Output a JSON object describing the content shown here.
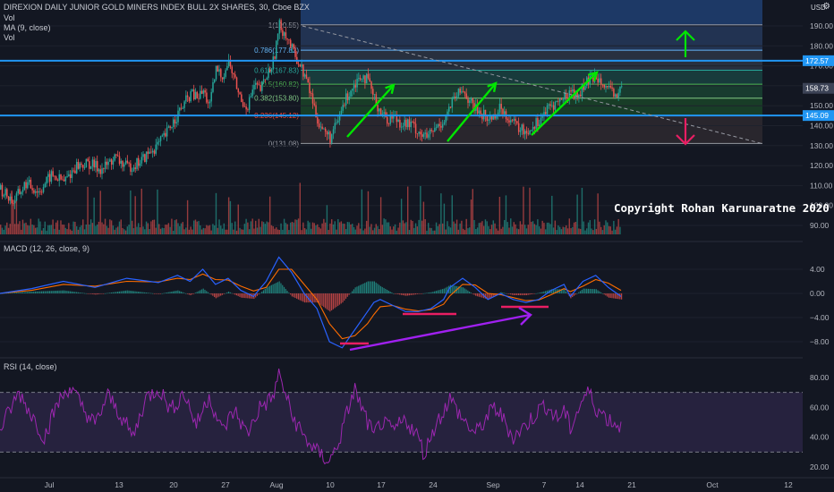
{
  "header": {
    "title": "DIREXION DAILY JUNIOR GOLD MINERS INDEX BULL 2X SHARES, 30, Cboe BZX",
    "indicators": [
      "Vol",
      "MA (9, close)",
      "Vol"
    ]
  },
  "currency": "USD",
  "copyright": "Copyright Rohan Karunaratne 2020",
  "macd_label": "MACD (12, 26, close, 9)",
  "rsi_label": "RSI (14, close)",
  "colors": {
    "up": "#26a69a",
    "down": "#ef5350",
    "blue_line": "#2196f3",
    "arrow_green": "#00e600",
    "arrow_red": "#e91e63",
    "macd_line": "#2962ff",
    "signal_line": "#ff6d00",
    "rsi_line": "#9c27b0",
    "purple_arrow": "#a020f0"
  },
  "chart_data": [
    {
      "type": "candlestick",
      "title": "DIREXION DAILY JUNIOR GOLD MINERS INDEX BULL 2X SHARES, 30, Cboe BZX",
      "x_labels": [
        "Jul",
        "13",
        "20",
        "27",
        "Aug",
        "10",
        "17",
        "24",
        "Sep",
        "7",
        "14",
        "21",
        "Oct",
        "12"
      ],
      "y_ticks": [
        90,
        100,
        110,
        120,
        130,
        140,
        150,
        160,
        170,
        180,
        190
      ],
      "ylim": [
        85,
        200
      ],
      "last_price": 158.73,
      "horizontal_levels": [
        172.57,
        145.09
      ],
      "fibonacci": [
        {
          "label": "1(190.55)",
          "value": 190.55
        },
        {
          "label": "0.786(177.82)",
          "value": 177.82
        },
        {
          "label": "0.618(167.83)",
          "value": 167.83
        },
        {
          "label": "0.5(160.82)",
          "value": 160.82
        },
        {
          "label": "0.382(153.80)",
          "value": 153.8
        },
        {
          "label": "0.236(145.12)",
          "value": 145.12
        },
        {
          "label": "0(131.08)",
          "value": 131.08
        }
      ],
      "price_path": [
        [
          0,
          108
        ],
        [
          4,
          102
        ],
        [
          8,
          111
        ],
        [
          12,
          107
        ],
        [
          16,
          115
        ],
        [
          20,
          112
        ],
        [
          24,
          120
        ],
        [
          28,
          121
        ],
        [
          32,
          118
        ],
        [
          36,
          124
        ],
        [
          40,
          119
        ],
        [
          44,
          122
        ],
        [
          48,
          128
        ],
        [
          50,
          131
        ],
        [
          52,
          135
        ],
        [
          54,
          141
        ],
        [
          56,
          146
        ],
        [
          58,
          151
        ],
        [
          60,
          156
        ],
        [
          62,
          154
        ],
        [
          64,
          157
        ],
        [
          66,
          150
        ],
        [
          68,
          168
        ],
        [
          70,
          165
        ],
        [
          72,
          172
        ],
        [
          74,
          162
        ],
        [
          76,
          152
        ],
        [
          78,
          150
        ],
        [
          80,
          160
        ],
        [
          82,
          158
        ],
        [
          84,
          165
        ],
        [
          86,
          172
        ],
        [
          88,
          190
        ],
        [
          90,
          186
        ],
        [
          92,
          178
        ],
        [
          94,
          172
        ],
        [
          96,
          165
        ],
        [
          98,
          155
        ],
        [
          100,
          143
        ],
        [
          102,
          137
        ],
        [
          104,
          134
        ],
        [
          106,
          140
        ],
        [
          108,
          150
        ],
        [
          110,
          157
        ],
        [
          112,
          162
        ],
        [
          114,
          166
        ],
        [
          116,
          162
        ],
        [
          118,
          153
        ],
        [
          120,
          147
        ],
        [
          122,
          143
        ],
        [
          124,
          145
        ],
        [
          126,
          142
        ],
        [
          128,
          141
        ],
        [
          130,
          140
        ],
        [
          132,
          137
        ],
        [
          134,
          134
        ],
        [
          136,
          136
        ],
        [
          138,
          140
        ],
        [
          140,
          143
        ],
        [
          142,
          150
        ],
        [
          144,
          155
        ],
        [
          146,
          158
        ],
        [
          148,
          152
        ],
        [
          150,
          148
        ],
        [
          152,
          146
        ],
        [
          154,
          143
        ],
        [
          156,
          146
        ],
        [
          158,
          149
        ],
        [
          160,
          145
        ],
        [
          162,
          141
        ],
        [
          164,
          138
        ],
        [
          166,
          137
        ],
        [
          168,
          140
        ],
        [
          170,
          143
        ],
        [
          172,
          147
        ],
        [
          174,
          150
        ],
        [
          176,
          152
        ],
        [
          178,
          154
        ],
        [
          180,
          158
        ],
        [
          182,
          154
        ],
        [
          184,
          160
        ],
        [
          186,
          163
        ],
        [
          188,
          165
        ],
        [
          190,
          163
        ],
        [
          192,
          157
        ],
        [
          194,
          155
        ],
        [
          196,
          158.73
        ]
      ],
      "price_path_x_unit": "bar index (0 = Jul start, 196 = last bar)"
    },
    {
      "type": "line",
      "title": "MACD (12, 26, close, 9)",
      "y_ticks": [
        4.0,
        0.0,
        -4.0,
        -8.0
      ],
      "y_tick_labels": [
        "4.00",
        "0.00",
        "−4.00",
        "−8.00"
      ],
      "ylim": [
        -10.5,
        7
      ],
      "series": [
        {
          "role": "macd",
          "values": [
            [
              0,
              0
            ],
            [
              10,
              0.8
            ],
            [
              20,
              2
            ],
            [
              30,
              1
            ],
            [
              40,
              2.5
            ],
            [
              50,
              1.8
            ],
            [
              56,
              3
            ],
            [
              60,
              2
            ],
            [
              64,
              4
            ],
            [
              68,
              1.5
            ],
            [
              72,
              2.5
            ],
            [
              76,
              0.5
            ],
            [
              80,
              -0.5
            ],
            [
              84,
              2
            ],
            [
              88,
              6
            ],
            [
              92,
              3.5
            ],
            [
              96,
              0
            ],
            [
              100,
              -2.5
            ],
            [
              104,
              -8
            ],
            [
              108,
              -9
            ],
            [
              112,
              -6
            ],
            [
              116,
              -3
            ],
            [
              118,
              -1.5
            ],
            [
              120,
              -1
            ],
            [
              124,
              -2
            ],
            [
              128,
              -3
            ],
            [
              132,
              -3
            ],
            [
              136,
              -2.5
            ],
            [
              140,
              -1
            ],
            [
              142,
              1
            ],
            [
              146,
              2.5
            ],
            [
              150,
              1
            ],
            [
              154,
              -1
            ],
            [
              158,
              0
            ],
            [
              162,
              -1
            ],
            [
              166,
              -1.5
            ],
            [
              170,
              -1
            ],
            [
              174,
              0.5
            ],
            [
              178,
              1.5
            ],
            [
              180,
              -0.5
            ],
            [
              184,
              2
            ],
            [
              188,
              3
            ],
            [
              192,
              1
            ],
            [
              196,
              -0.5
            ]
          ]
        },
        {
          "role": "signal",
          "values": [
            [
              0,
              0
            ],
            [
              10,
              0.5
            ],
            [
              20,
              1.5
            ],
            [
              30,
              1.2
            ],
            [
              40,
              2
            ],
            [
              50,
              1.9
            ],
            [
              56,
              2.5
            ],
            [
              60,
              2.3
            ],
            [
              64,
              3.2
            ],
            [
              68,
              2.3
            ],
            [
              72,
              2.2
            ],
            [
              76,
              1.2
            ],
            [
              80,
              0.4
            ],
            [
              84,
              1
            ],
            [
              88,
              4
            ],
            [
              92,
              4
            ],
            [
              96,
              1.5
            ],
            [
              100,
              -1
            ],
            [
              104,
              -5
            ],
            [
              108,
              -7.5
            ],
            [
              112,
              -7
            ],
            [
              116,
              -5
            ],
            [
              118,
              -3.5
            ],
            [
              120,
              -2.2
            ],
            [
              124,
              -2
            ],
            [
              128,
              -2.6
            ],
            [
              132,
              -2.9
            ],
            [
              136,
              -2.7
            ],
            [
              140,
              -1.8
            ],
            [
              142,
              -0.4
            ],
            [
              146,
              1.5
            ],
            [
              150,
              1.4
            ],
            [
              154,
              0
            ],
            [
              158,
              -0.2
            ],
            [
              162,
              -0.7
            ],
            [
              166,
              -1.2
            ],
            [
              170,
              -1.1
            ],
            [
              174,
              -0.2
            ],
            [
              178,
              0.8
            ],
            [
              180,
              0.3
            ],
            [
              184,
              1.2
            ],
            [
              188,
              2.3
            ],
            [
              192,
              1.7
            ],
            [
              196,
              0.5
            ]
          ]
        }
      ]
    },
    {
      "type": "line",
      "title": "RSI (14, close)",
      "y_ticks": [
        20.0,
        40.0,
        60.0,
        80.0
      ],
      "y_tick_labels": [
        "20.00",
        "40.00",
        "60.00",
        "80.00"
      ],
      "ylim": [
        15,
        90
      ],
      "band": [
        30,
        70
      ],
      "series": [
        {
          "role": "rsi",
          "values": [
            [
              0,
              45
            ],
            [
              6,
              70
            ],
            [
              10,
              55
            ],
            [
              14,
              40
            ],
            [
              18,
              62
            ],
            [
              22,
              74
            ],
            [
              26,
              60
            ],
            [
              30,
              48
            ],
            [
              34,
              68
            ],
            [
              38,
              55
            ],
            [
              42,
              40
            ],
            [
              46,
              66
            ],
            [
              50,
              73
            ],
            [
              54,
              58
            ],
            [
              58,
              70
            ],
            [
              62,
              48
            ],
            [
              66,
              68
            ],
            [
              70,
              44
            ],
            [
              74,
              58
            ],
            [
              78,
              42
            ],
            [
              82,
              60
            ],
            [
              86,
              66
            ],
            [
              88,
              82
            ],
            [
              90,
              70
            ],
            [
              92,
              55
            ],
            [
              96,
              40
            ],
            [
              100,
              30
            ],
            [
              104,
              24
            ],
            [
              106,
              32
            ],
            [
              108,
              44
            ],
            [
              110,
              60
            ],
            [
              112,
              72
            ],
            [
              114,
              60
            ],
            [
              118,
              40
            ],
            [
              120,
              50
            ],
            [
              124,
              44
            ],
            [
              128,
              52
            ],
            [
              132,
              40
            ],
            [
              134,
              28
            ],
            [
              136,
              42
            ],
            [
              140,
              58
            ],
            [
              142,
              66
            ],
            [
              146,
              52
            ],
            [
              150,
              42
            ],
            [
              152,
              48
            ],
            [
              156,
              60
            ],
            [
              158,
              55
            ],
            [
              162,
              40
            ],
            [
              166,
              48
            ],
            [
              170,
              58
            ],
            [
              172,
              62
            ],
            [
              176,
              52
            ],
            [
              178,
              58
            ],
            [
              180,
              46
            ],
            [
              184,
              66
            ],
            [
              186,
              70
            ],
            [
              188,
              60
            ],
            [
              192,
              52
            ],
            [
              196,
              47
            ]
          ]
        }
      ]
    }
  ]
}
